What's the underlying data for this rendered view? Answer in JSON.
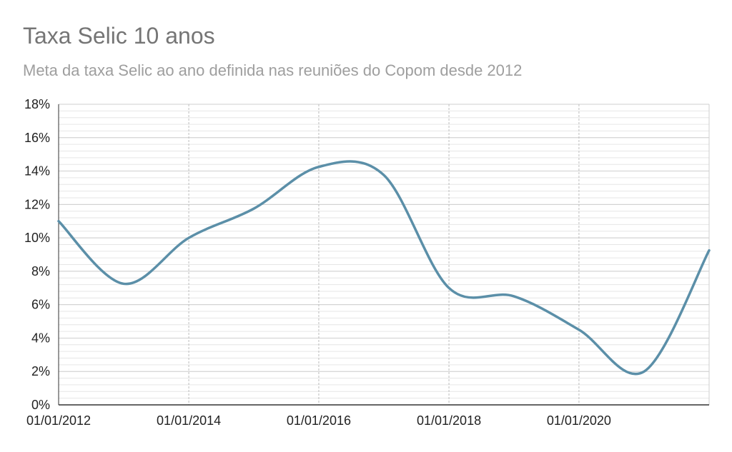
{
  "chart_data": {
    "type": "line",
    "title": "Taxa Selic 10 anos",
    "subtitle": "Meta da taxa Selic ao ano definida nas reuniões do Copom desde 2012",
    "xlabel": "",
    "ylabel": "",
    "x_axis": {
      "min": "2012-01-01",
      "max": "2022-01-01",
      "ticks": [
        "01/01/2012",
        "01/01/2014",
        "01/01/2016",
        "01/01/2018",
        "01/01/2020"
      ],
      "tick_dates": [
        "2012-01-01",
        "2014-01-01",
        "2016-01-01",
        "2018-01-01",
        "2020-01-01"
      ]
    },
    "y_axis": {
      "min": 0,
      "max": 18,
      "ticks": [
        "0%",
        "2%",
        "4%",
        "6%",
        "8%",
        "10%",
        "12%",
        "14%",
        "16%",
        "18%"
      ],
      "tick_values": [
        0,
        2,
        4,
        6,
        8,
        10,
        12,
        14,
        16,
        18
      ]
    },
    "grid": true,
    "legend": "none",
    "series": [
      {
        "color": "#5b8fa8",
        "x": [
          "2012-01-01",
          "2013-01-01",
          "2014-01-01",
          "2015-01-01",
          "2016-01-01",
          "2017-01-01",
          "2018-01-01",
          "2019-01-01",
          "2020-01-01",
          "2021-01-01",
          "2022-01-01"
        ],
        "y": [
          11.0,
          7.25,
          10.0,
          11.75,
          14.25,
          13.75,
          7.0,
          6.5,
          4.5,
          2.0,
          9.25
        ]
      }
    ]
  }
}
